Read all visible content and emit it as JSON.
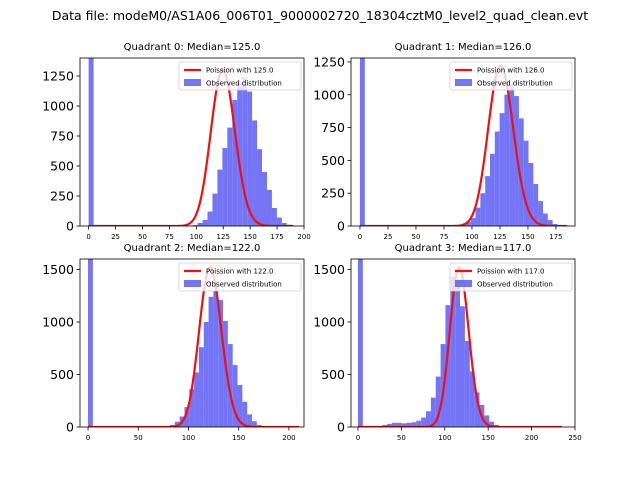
{
  "figure": {
    "suptitle": "Data file: modeM0/AS1A06_006T01_9000002720_18304cztM0_level2_quad_clean.evt"
  },
  "colors": {
    "hist": "#5c5cf5",
    "poisson": "#ee1111",
    "axes": "#000000"
  },
  "chart_data": [
    {
      "type": "bar",
      "title": "Quadrant 0: Median=125.0",
      "xlabel": "",
      "ylabel": "",
      "xlim": [
        -8,
        200
      ],
      "ylim": [
        0,
        1400
      ],
      "xticks": [
        0,
        25,
        50,
        75,
        100,
        125,
        150,
        175,
        200
      ],
      "yticks": [
        0,
        250,
        500,
        750,
        1000,
        1250
      ],
      "legend": {
        "placement": "top-right",
        "entries": [
          "Poission with 125.0",
          "Observed distribution"
        ]
      },
      "series": [
        {
          "name": "Observed distribution",
          "kind": "histogram",
          "bin_start": 0,
          "bin_width": 4.6,
          "values": [
            1400,
            0,
            0,
            0,
            0,
            0,
            0,
            0,
            0,
            0,
            0,
            0,
            0,
            0,
            0,
            0,
            0,
            0,
            0,
            0,
            2,
            8,
            25,
            50,
            120,
            270,
            470,
            650,
            820,
            1050,
            1190,
            1240,
            1120,
            880,
            640,
            450,
            300,
            150,
            70,
            25,
            10,
            3,
            0
          ]
        },
        {
          "name": "Poission with 125.0",
          "kind": "poisson",
          "mean": 125.0,
          "scale": 1300,
          "x_range": [
            0,
            190
          ]
        }
      ]
    },
    {
      "type": "bar",
      "title": "Quadrant 1: Median=126.0",
      "xlabel": "",
      "ylabel": "",
      "xlim": [
        -8,
        192
      ],
      "ylim": [
        0,
        1280
      ],
      "xticks": [
        0,
        25,
        50,
        75,
        100,
        125,
        150,
        175
      ],
      "yticks": [
        0,
        250,
        500,
        750,
        1000,
        1250
      ],
      "legend": {
        "placement": "top-right",
        "entries": [
          "Poission with 126.0",
          "Observed distribution"
        ]
      },
      "series": [
        {
          "name": "Observed distribution",
          "kind": "histogram",
          "bin_start": 0,
          "bin_width": 4.3,
          "values": [
            1280,
            0,
            0,
            0,
            0,
            0,
            0,
            0,
            0,
            0,
            0,
            0,
            0,
            0,
            0,
            0,
            0,
            0,
            0,
            0,
            0,
            10,
            30,
            60,
            140,
            250,
            380,
            550,
            720,
            860,
            1000,
            1080,
            990,
            820,
            650,
            480,
            320,
            190,
            95,
            45,
            15,
            5,
            0
          ]
        },
        {
          "name": "Poission with 126.0",
          "kind": "poisson",
          "mean": 126.0,
          "scale": 1220,
          "x_range": [
            0,
            185
          ]
        }
      ]
    },
    {
      "type": "bar",
      "title": "Quadrant 2: Median=122.0",
      "xlabel": "",
      "ylabel": "",
      "xlim": [
        -8,
        215
      ],
      "ylim": [
        0,
        1600
      ],
      "xticks": [
        0,
        50,
        100,
        150,
        200
      ],
      "yticks": [
        0,
        500,
        1000,
        1500
      ],
      "legend": {
        "placement": "top-right",
        "entries": [
          "Poission with 122.0",
          "Observed distribution"
        ]
      },
      "series": [
        {
          "name": "Observed distribution",
          "kind": "histogram",
          "bin_start": 0,
          "bin_width": 4.8,
          "values": [
            1600,
            0,
            0,
            0,
            0,
            0,
            0,
            0,
            0,
            0,
            0,
            0,
            0,
            0,
            0,
            0,
            5,
            20,
            50,
            100,
            190,
            360,
            520,
            760,
            1000,
            1240,
            1300,
            1210,
            1010,
            790,
            590,
            400,
            240,
            120,
            55,
            20,
            6,
            0,
            0,
            0,
            0,
            0,
            0
          ]
        },
        {
          "name": "Poission with 122.0",
          "kind": "poisson",
          "mean": 122.0,
          "scale": 1520,
          "x_range": [
            0,
            210
          ]
        }
      ]
    },
    {
      "type": "bar",
      "title": "Quadrant 3: Median=117.0",
      "xlabel": "",
      "ylabel": "",
      "xlim": [
        -8,
        250
      ],
      "ylim": [
        0,
        1600
      ],
      "xticks": [
        0,
        50,
        100,
        150,
        200,
        250
      ],
      "yticks": [
        0,
        500,
        1000,
        1500
      ],
      "legend": {
        "placement": "top-right",
        "entries": [
          "Poission with 117.0",
          "Observed distribution"
        ]
      },
      "series": [
        {
          "name": "Observed distribution",
          "kind": "histogram",
          "bin_start": 0,
          "bin_width": 5.6,
          "values": [
            1600,
            0,
            0,
            0,
            10,
            20,
            30,
            40,
            40,
            35,
            40,
            45,
            60,
            90,
            150,
            280,
            480,
            790,
            1160,
            1430,
            1400,
            1150,
            820,
            530,
            330,
            210,
            110,
            50,
            20,
            8,
            3,
            0,
            0,
            0,
            0,
            0,
            0,
            0,
            0,
            0,
            0,
            0
          ]
        },
        {
          "name": "Poission with 117.0",
          "kind": "poisson",
          "mean": 117.0,
          "scale": 1520,
          "x_range": [
            0,
            235
          ]
        }
      ]
    }
  ]
}
